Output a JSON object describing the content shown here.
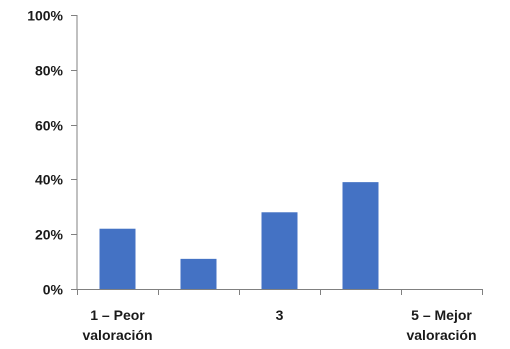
{
  "chart_data": {
    "type": "bar",
    "categories": [
      [
        "1 – Peor",
        "valoración"
      ],
      [
        ""
      ],
      [
        "3"
      ],
      [
        ""
      ],
      [
        "5 – Mejor",
        "valoración"
      ]
    ],
    "values": [
      22,
      11,
      28,
      39,
      0
    ],
    "yticks": [
      "0%",
      "20%",
      "40%",
      "60%",
      "80%",
      "100%"
    ],
    "ylim": [
      0,
      100
    ],
    "grid": false,
    "legend": "none",
    "colors": {
      "bar": "#4472C4",
      "axis": "#808080"
    }
  }
}
